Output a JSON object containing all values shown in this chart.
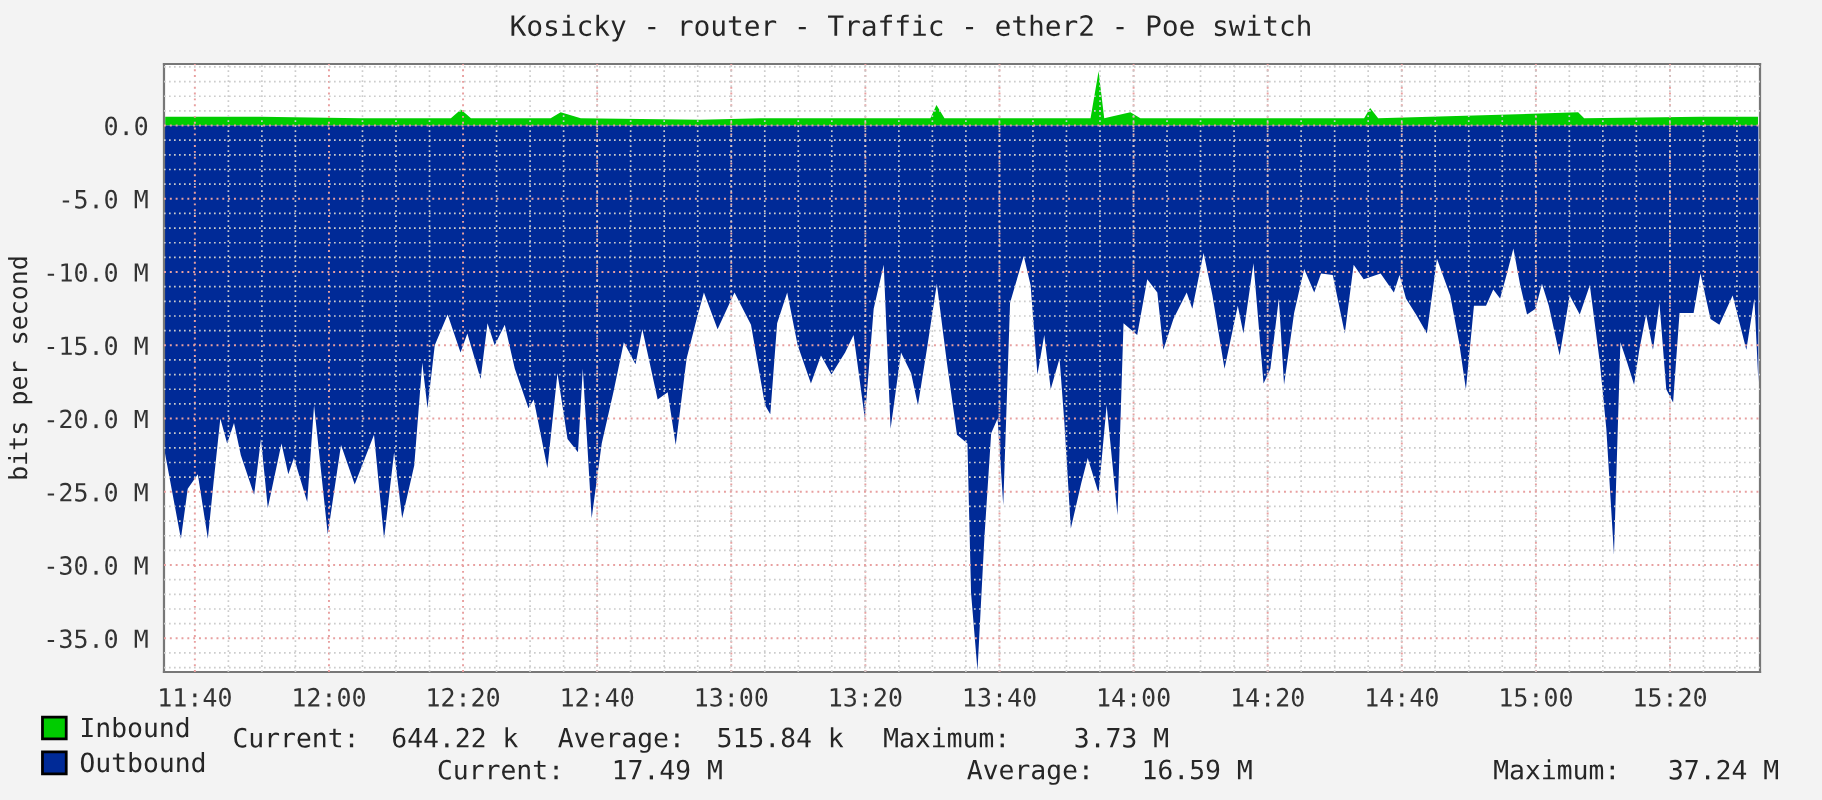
{
  "chart_data": {
    "type": "area",
    "title": "Kosicky - router - Traffic - ether2 - Poe switch",
    "ylabel": "bits per second",
    "xlim": [
      11.59,
      15.557
    ],
    "ylim": [
      -37.3,
      4.2
    ],
    "xticks": [
      {
        "value": 11.6667,
        "label": "11:40"
      },
      {
        "value": 12.0,
        "label": "12:00"
      },
      {
        "value": 12.3333,
        "label": "12:20"
      },
      {
        "value": 12.6667,
        "label": "12:40"
      },
      {
        "value": 13.0,
        "label": "13:00"
      },
      {
        "value": 13.3333,
        "label": "13:20"
      },
      {
        "value": 13.6667,
        "label": "13:40"
      },
      {
        "value": 14.0,
        "label": "14:00"
      },
      {
        "value": 14.3333,
        "label": "14:20"
      },
      {
        "value": 14.6667,
        "label": "14:40"
      },
      {
        "value": 15.0,
        "label": "15:00"
      },
      {
        "value": 15.3333,
        "label": "15:20"
      }
    ],
    "yticks": [
      {
        "value": 0,
        "label": "0.0"
      },
      {
        "value": -5,
        "label": "-5.0 M"
      },
      {
        "value": -10,
        "label": "-10.0 M"
      },
      {
        "value": -15,
        "label": "-15.0 M"
      },
      {
        "value": -20,
        "label": "-20.0 M"
      },
      {
        "value": -25,
        "label": "-25.0 M"
      },
      {
        "value": -30,
        "label": "-30.0 M"
      },
      {
        "value": -35,
        "label": "-35.0 M"
      }
    ],
    "grid": true,
    "legend": "bottom left",
    "series": [
      {
        "name": "Inbound",
        "color": "#00cc00",
        "x": [
          11.593,
          11.831,
          12.079,
          12.303,
          12.328,
          12.353,
          12.551,
          12.576,
          12.626,
          12.924,
          13.073,
          13.495,
          13.51,
          13.53,
          13.893,
          13.913,
          13.927,
          13.992,
          14.017,
          14.573,
          14.588,
          14.608,
          15.105,
          15.12,
          15.408,
          15.552
        ],
        "values": [
          0.6,
          0.6,
          0.5,
          0.5,
          1.1,
          0.5,
          0.5,
          0.9,
          0.5,
          0.4,
          0.5,
          0.5,
          1.4,
          0.5,
          0.5,
          3.7,
          0.5,
          0.9,
          0.5,
          0.5,
          1.2,
          0.5,
          0.9,
          0.5,
          0.6,
          0.6
        ]
      },
      {
        "name": "Outbound",
        "color": "#002a97",
        "x": [
          11.592,
          11.632,
          11.649,
          11.674,
          11.699,
          11.713,
          11.73,
          11.747,
          11.764,
          11.781,
          11.814,
          11.831,
          11.848,
          11.882,
          11.899,
          11.913,
          11.946,
          11.963,
          11.997,
          12.03,
          12.064,
          12.112,
          12.137,
          12.162,
          12.182,
          12.212,
          12.232,
          12.245,
          12.263,
          12.295,
          12.327,
          12.344,
          12.377,
          12.394,
          12.412,
          12.437,
          12.462,
          12.496,
          12.509,
          12.543,
          12.568,
          12.593,
          12.619,
          12.631,
          12.653,
          12.678,
          12.707,
          12.733,
          12.762,
          12.779,
          12.817,
          12.842,
          12.862,
          12.889,
          12.914,
          12.932,
          12.966,
          13.008,
          13.049,
          13.084,
          13.097,
          13.114,
          13.139,
          13.165,
          13.198,
          13.223,
          13.249,
          13.283,
          13.304,
          13.332,
          13.354,
          13.379,
          13.396,
          13.422,
          13.447,
          13.464,
          13.486,
          13.511,
          13.536,
          13.561,
          13.587,
          13.596,
          13.612,
          13.629,
          13.646,
          13.662,
          13.676,
          13.693,
          13.727,
          13.744,
          13.761,
          13.778,
          13.794,
          13.816,
          13.828,
          13.844,
          13.87,
          13.886,
          13.913,
          13.933,
          13.96,
          13.975,
          14.009,
          14.034,
          14.059,
          14.074,
          14.099,
          14.132,
          14.146,
          14.174,
          14.196,
          14.226,
          14.259,
          14.273,
          14.298,
          14.323,
          14.34,
          14.361,
          14.374,
          14.399,
          14.424,
          14.449,
          14.466,
          14.495,
          14.525,
          14.547,
          14.572,
          14.614,
          14.647,
          14.661,
          14.677,
          14.702,
          14.729,
          14.754,
          14.787,
          14.809,
          14.826,
          14.846,
          14.876,
          14.894,
          14.911,
          14.928,
          14.944,
          14.961,
          14.978,
          14.999,
          15.015,
          15.032,
          15.059,
          15.084,
          15.109,
          15.134,
          15.159,
          15.175,
          15.194,
          15.21,
          15.227,
          15.244,
          15.257,
          15.274,
          15.291,
          15.307,
          15.324,
          15.341,
          15.357,
          15.392,
          15.409,
          15.434,
          15.456,
          15.489,
          15.523,
          15.543,
          15.553
        ],
        "values": [
          -22.3,
          -28.2,
          -24.8,
          -23.8,
          -28.2,
          -24.4,
          -20.0,
          -21.7,
          -20.3,
          -22.5,
          -25.2,
          -21.4,
          -26.1,
          -21.7,
          -23.8,
          -22.7,
          -25.7,
          -19.1,
          -27.9,
          -21.8,
          -24.5,
          -21.1,
          -28.2,
          -22.3,
          -26.8,
          -23.2,
          -16.2,
          -19.3,
          -15.0,
          -12.9,
          -15.5,
          -14.2,
          -17.3,
          -13.5,
          -15.0,
          -13.6,
          -16.6,
          -19.3,
          -18.7,
          -23.4,
          -16.9,
          -21.4,
          -22.3,
          -16.6,
          -26.8,
          -21.7,
          -18.2,
          -14.8,
          -16.3,
          -13.9,
          -18.7,
          -18.2,
          -21.8,
          -15.9,
          -13.2,
          -11.4,
          -13.9,
          -11.4,
          -13.6,
          -19.1,
          -19.7,
          -13.5,
          -11.4,
          -15.0,
          -17.6,
          -15.7,
          -17.0,
          -15.5,
          -14.3,
          -20.0,
          -12.5,
          -9.5,
          -20.7,
          -15.5,
          -16.9,
          -19.1,
          -15.3,
          -10.8,
          -16.2,
          -21.1,
          -21.7,
          -31.9,
          -37.2,
          -28.2,
          -21.0,
          -20.0,
          -25.9,
          -12.1,
          -8.9,
          -10.9,
          -17.0,
          -14.3,
          -18.0,
          -15.9,
          -20.3,
          -27.5,
          -24.4,
          -22.7,
          -25.1,
          -19.1,
          -26.6,
          -13.5,
          -14.3,
          -10.5,
          -11.4,
          -15.3,
          -13.2,
          -11.4,
          -12.5,
          -8.7,
          -11.6,
          -16.6,
          -12.3,
          -14.2,
          -9.4,
          -17.6,
          -16.6,
          -11.8,
          -17.7,
          -12.8,
          -9.8,
          -11.4,
          -10.1,
          -10.2,
          -14.2,
          -9.5,
          -10.5,
          -10.1,
          -11.4,
          -10.2,
          -11.8,
          -12.9,
          -14.2,
          -9.1,
          -11.6,
          -14.8,
          -18.0,
          -12.3,
          -12.3,
          -11.2,
          -11.8,
          -10.1,
          -8.4,
          -10.9,
          -12.9,
          -12.5,
          -10.8,
          -12.3,
          -15.7,
          -11.6,
          -12.9,
          -10.9,
          -16.2,
          -20.7,
          -29.3,
          -14.8,
          -16.2,
          -17.7,
          -15.3,
          -12.9,
          -15.3,
          -12.1,
          -18.0,
          -18.9,
          -12.8,
          -12.8,
          -10.1,
          -13.2,
          -13.6,
          -11.6,
          -15.3,
          -11.8,
          -17.5
        ]
      }
    ],
    "annotations": [
      "Current:  644.22 k",
      "Average:  515.84 k",
      "Maximum:    3.73 M",
      "Current:   17.49 M",
      "Average:   16.59 M",
      "Maximum:   37.24 M"
    ]
  }
}
